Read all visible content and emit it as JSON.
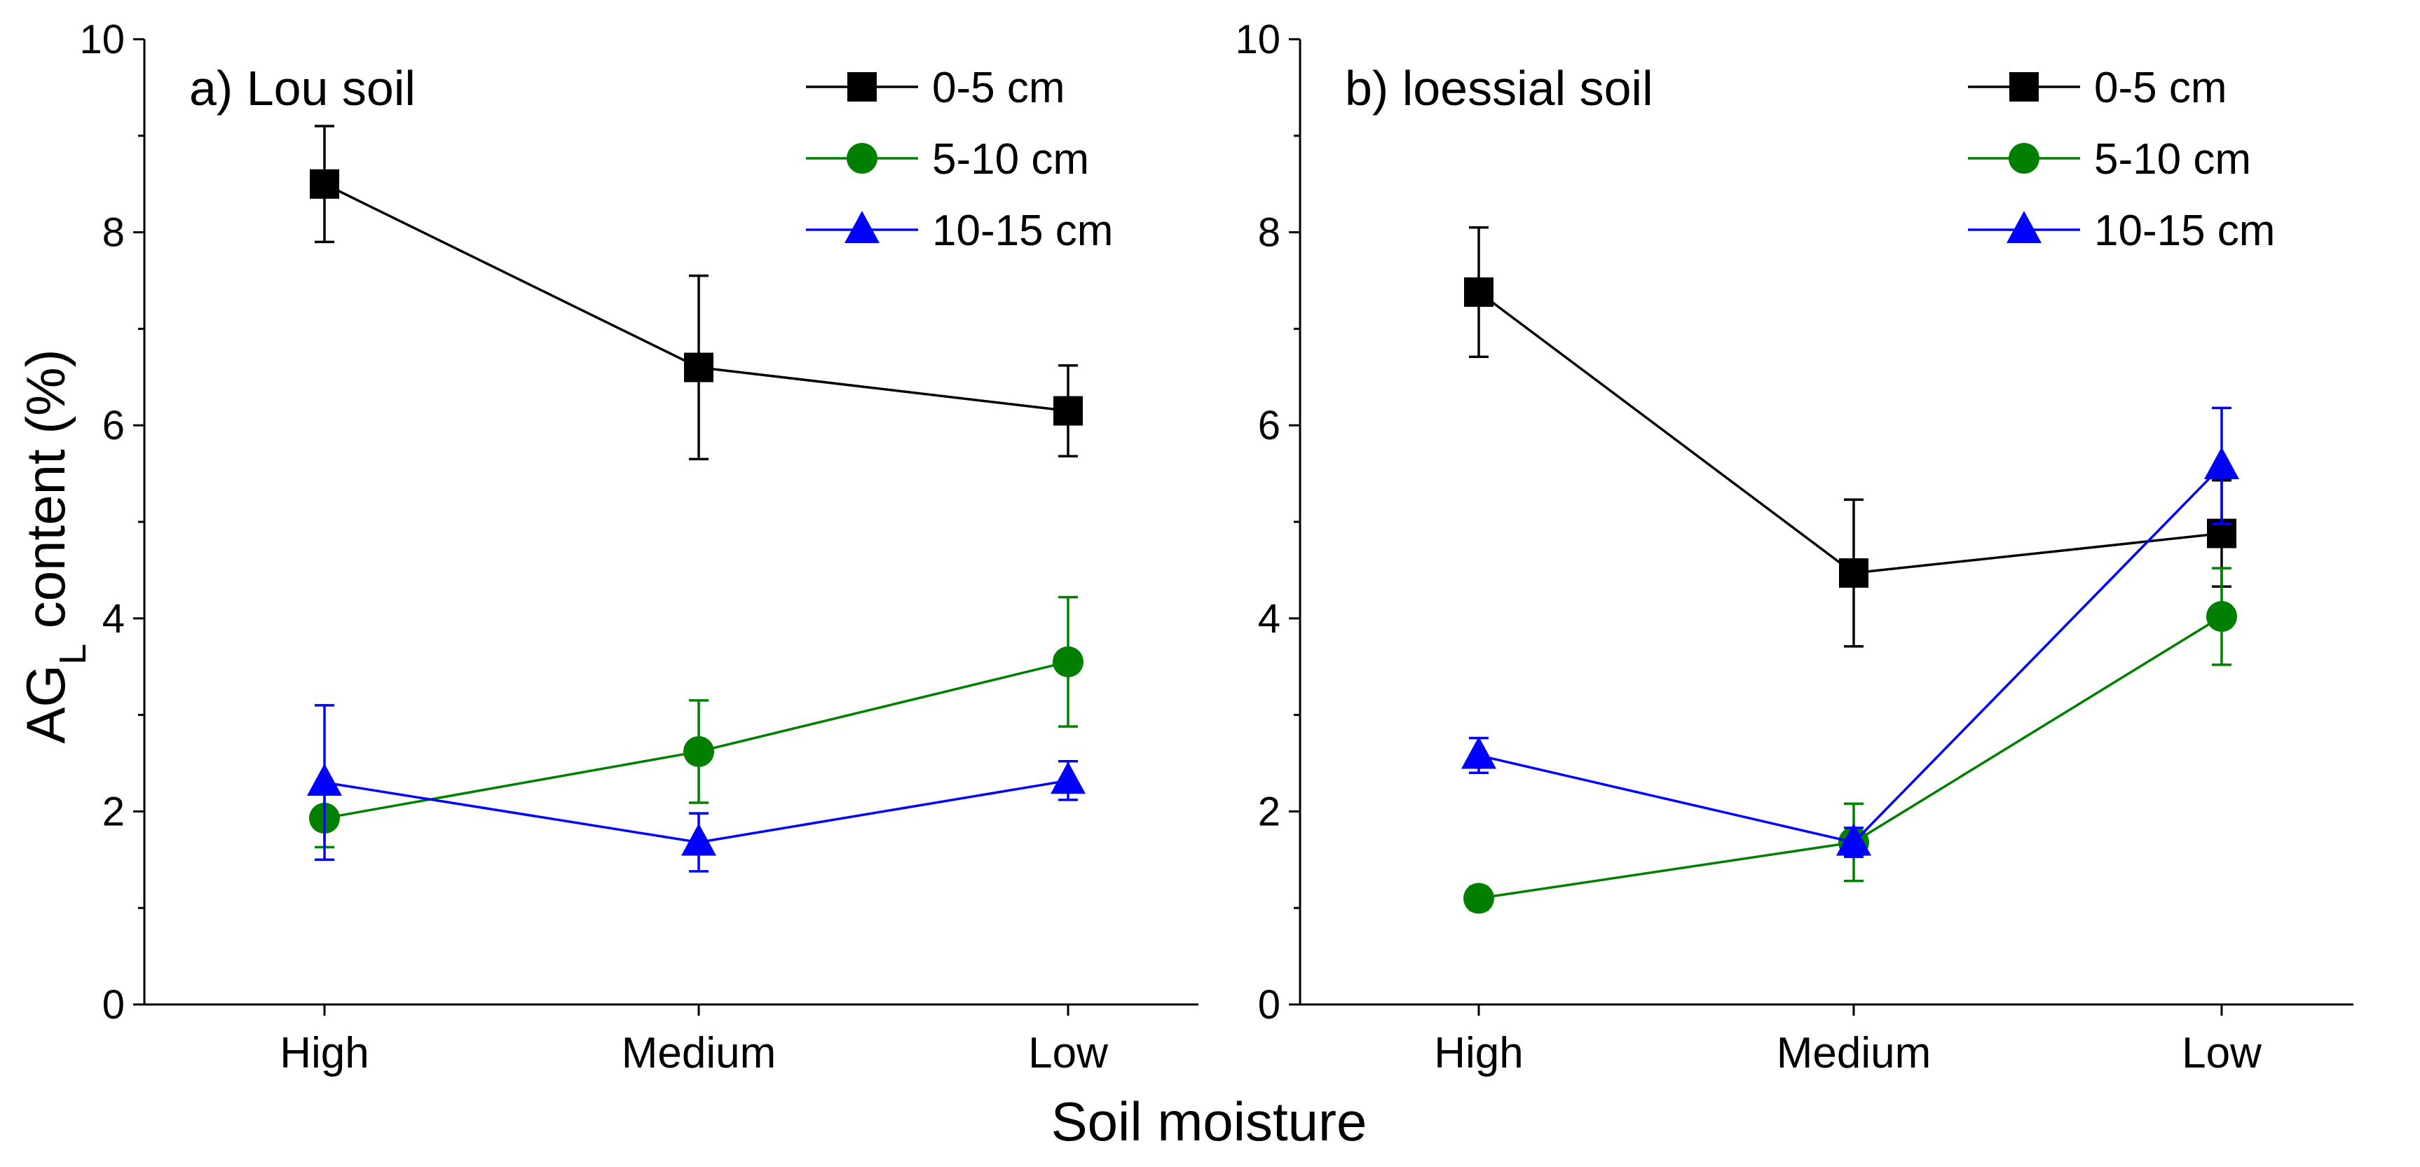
{
  "figure": {
    "ylabel_main": "AG",
    "ylabel_sub": "L",
    "ylabel_rest": " content (%)",
    "xlabel": "Soil moisture"
  },
  "chart_data": [
    {
      "type": "line",
      "panel": "a",
      "title": "a) Lou soil",
      "xlabel": "Soil moisture",
      "ylabel": "AGL content (%)",
      "categories": [
        "High",
        "Medium",
        "Low"
      ],
      "ylim": [
        0,
        10
      ],
      "yticks": [
        0,
        2,
        4,
        6,
        8,
        10
      ],
      "legend_position": "top-right",
      "series": [
        {
          "name": "0-5 cm",
          "color": "#000000",
          "marker": "square",
          "values": [
            8.5,
            6.6,
            6.15
          ],
          "errors": [
            0.6,
            0.95,
            0.47
          ]
        },
        {
          "name": "5-10 cm",
          "color": "#007f00",
          "marker": "circle",
          "values": [
            1.93,
            2.62,
            3.55
          ],
          "errors": [
            0.3,
            0.53,
            0.67
          ]
        },
        {
          "name": "10-15 cm",
          "color": "#0000ff",
          "marker": "triangle",
          "values": [
            2.3,
            1.68,
            2.32
          ],
          "errors": [
            0.8,
            0.3,
            0.2
          ]
        }
      ]
    },
    {
      "type": "line",
      "panel": "b",
      "title": "b) loessial soil",
      "xlabel": "Soil moisture",
      "ylabel": "AGL content (%)",
      "categories": [
        "High",
        "Medium",
        "Low"
      ],
      "ylim": [
        0,
        10
      ],
      "yticks": [
        0,
        2,
        4,
        6,
        8,
        10
      ],
      "legend_position": "top-right",
      "series": [
        {
          "name": "0-5 cm",
          "color": "#000000",
          "marker": "square",
          "values": [
            7.38,
            4.47,
            4.88
          ],
          "errors": [
            0.67,
            0.76,
            0.55
          ]
        },
        {
          "name": "5-10 cm",
          "color": "#007f00",
          "marker": "circle",
          "values": [
            1.1,
            1.68,
            4.02
          ],
          "errors": [
            0.12,
            0.4,
            0.5
          ]
        },
        {
          "name": "10-15 cm",
          "color": "#0000ff",
          "marker": "triangle",
          "values": [
            2.58,
            1.68,
            5.58
          ],
          "errors": [
            0.18,
            0.15,
            0.6
          ]
        }
      ]
    }
  ]
}
